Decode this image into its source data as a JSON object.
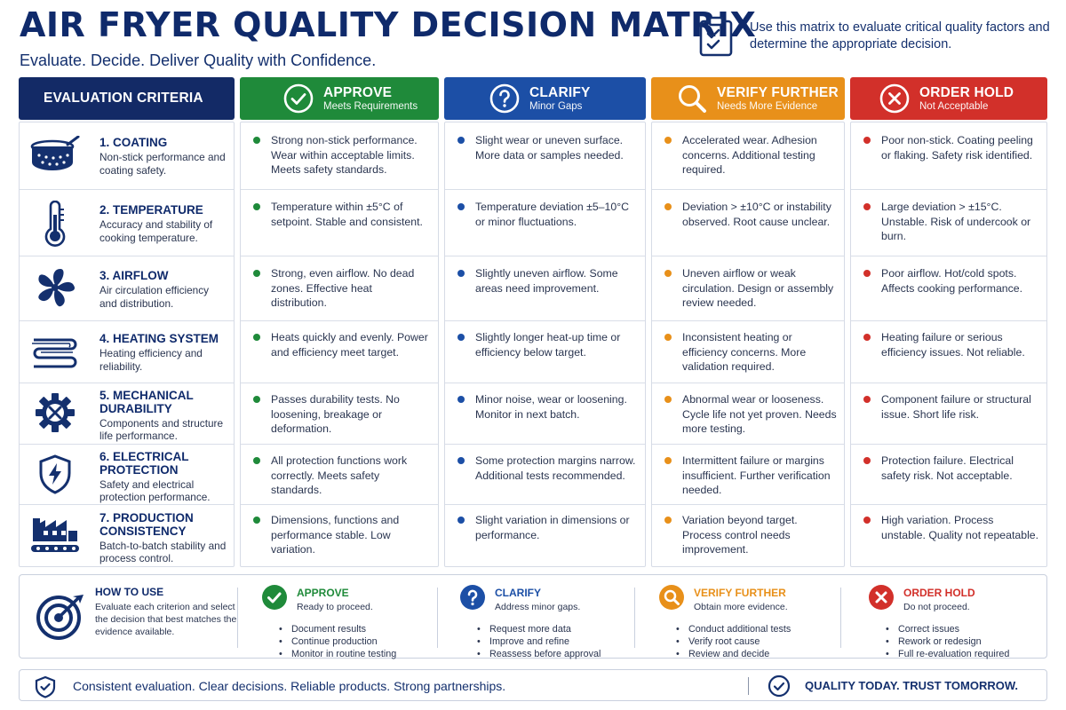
{
  "header": {
    "title": "AIR FRYER QUALITY DECISION MATRIX",
    "subtitle": "Evaluate. Decide. Deliver Quality with Confidence.",
    "intro": "Use this matrix to evaluate critical quality factors and determine the appropriate decision."
  },
  "colors": {
    "navy": "#132a66",
    "approve": "#1f8a3a",
    "clarify": "#1c4fa6",
    "verify": "#e8901a",
    "hold": "#d2302a"
  },
  "columns": {
    "criteria_label": "EVALUATION CRITERIA",
    "approve": {
      "label": "APPROVE",
      "sub": "Meets Requirements",
      "icon": "check-circle-icon"
    },
    "clarify": {
      "label": "CLARIFY",
      "sub": "Minor Gaps",
      "icon": "question-circle-icon"
    },
    "verify": {
      "label": "VERIFY FURTHER",
      "sub": "Needs More Evidence",
      "icon": "magnifier-icon"
    },
    "hold": {
      "label": "ORDER HOLD",
      "sub": "Not Acceptable",
      "icon": "x-circle-icon"
    }
  },
  "criteria": [
    {
      "name": "1. COATING",
      "desc": "Non-stick performance and coating safety.",
      "icon": "pan-icon",
      "approve": "Strong non-stick performance. Wear within acceptable limits. Meets safety standards.",
      "clarify": "Slight wear or uneven surface. More data or samples needed.",
      "verify": "Accelerated wear. Adhesion concerns. Additional testing required.",
      "hold": "Poor non-stick. Coating peeling or flaking. Safety risk identified."
    },
    {
      "name": "2. TEMPERATURE",
      "desc": "Accuracy and stability of cooking temperature.",
      "icon": "thermometer-icon",
      "approve": "Temperature within ±5°C of setpoint. Stable and consistent.",
      "clarify": "Temperature deviation ±5–10°C or minor fluctuations.",
      "verify": "Deviation > ±10°C or instability observed. Root cause unclear.",
      "hold": "Large deviation > ±15°C. Unstable. Risk of undercook or burn."
    },
    {
      "name": "3. AIRFLOW",
      "desc": "Air circulation efficiency and distribution.",
      "icon": "fan-icon",
      "approve": "Strong, even airflow. No dead zones. Effective heat distribution.",
      "clarify": "Slightly uneven airflow. Some areas need improvement.",
      "verify": "Uneven airflow or weak circulation. Design or assembly review needed.",
      "hold": "Poor airflow. Hot/cold spots. Affects cooking performance."
    },
    {
      "name": "4. HEATING SYSTEM",
      "desc": "Heating efficiency and reliability.",
      "icon": "heating-element-icon",
      "approve": "Heats quickly and evenly. Power and efficiency meet target.",
      "clarify": "Slightly longer heat-up time or efficiency below target.",
      "verify": "Inconsistent heating or efficiency concerns. More validation required.",
      "hold": "Heating failure or serious efficiency issues. Not reliable."
    },
    {
      "name": "5. MECHANICAL DURABILITY",
      "desc": "Components and structure life performance.",
      "icon": "gear-tools-icon",
      "approve": "Passes durability tests. No loosening, breakage or deformation.",
      "clarify": "Minor noise, wear or loosening. Monitor in next batch.",
      "verify": "Abnormal wear or looseness. Cycle life not yet proven. Needs more testing.",
      "hold": "Component failure or structural issue. Short life risk."
    },
    {
      "name": "6. ELECTRICAL PROTECTION",
      "desc": "Safety and electrical protection performance.",
      "icon": "shield-bolt-icon",
      "approve": "All protection functions work correctly. Meets safety standards.",
      "clarify": "Some protection margins narrow. Additional tests recommended.",
      "verify": "Intermittent failure or margins insufficient. Further verification needed.",
      "hold": "Protection failure. Electrical safety risk. Not acceptable."
    },
    {
      "name": "7. PRODUCTION CONSISTENCY",
      "desc": "Batch-to-batch stability and process control.",
      "icon": "factory-icon",
      "approve": "Dimensions, functions and performance stable. Low variation.",
      "clarify": "Slight variation in dimensions or performance.",
      "verify": "Variation beyond target. Process control needs improvement.",
      "hold": "High variation. Process unstable. Quality not repeatable."
    }
  ],
  "how_to": {
    "title": "HOW TO USE",
    "desc": "Evaluate each criterion and select the decision that best matches the evidence available.",
    "legend": [
      {
        "key": "approve",
        "title": "APPROVE",
        "sub": "Ready to proceed.",
        "items": [
          "Document results",
          "Continue production",
          "Monitor in routine testing"
        ]
      },
      {
        "key": "clarify",
        "title": "CLARIFY",
        "sub": "Address minor gaps.",
        "items": [
          "Request more data",
          "Improve and refine",
          "Reassess before approval"
        ]
      },
      {
        "key": "verify",
        "title": "VERIFY FURTHER",
        "sub": "Obtain more evidence.",
        "items": [
          "Conduct additional tests",
          "Verify root cause",
          "Review and decide"
        ]
      },
      {
        "key": "hold",
        "title": "ORDER HOLD",
        "sub": "Do not proceed.",
        "items": [
          "Correct issues",
          "Rework or redesign",
          "Full re-evaluation required"
        ]
      }
    ]
  },
  "footer": {
    "left": "Consistent evaluation. Clear decisions. Reliable products. Strong partnerships.",
    "right": "QUALITY TODAY. TRUST TOMORROW."
  }
}
